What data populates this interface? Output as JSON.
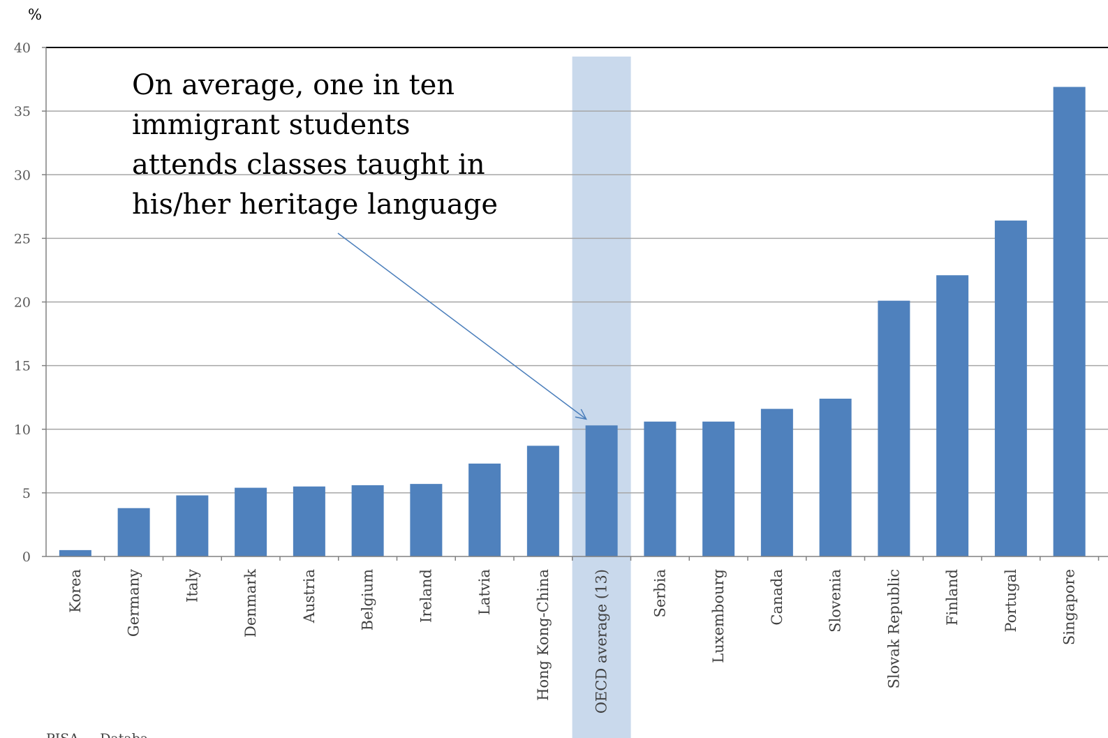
{
  "chart_data": {
    "type": "bar",
    "unit_label": "%",
    "ylim": [
      0,
      40
    ],
    "yticks": [
      0,
      5,
      10,
      15,
      20,
      25,
      30,
      35,
      40
    ],
    "grid": true,
    "categories": [
      "Korea",
      "Germany",
      "Italy",
      "Denmark",
      "Austria",
      "Belgium",
      "Ireland",
      "Latvia",
      "Hong Kong-China",
      "OECD average (13)",
      "Serbia",
      "Luxembourg",
      "Canada",
      "Slovenia",
      "Slovak Republic",
      "Finland",
      "Portugal",
      "Singapore"
    ],
    "values": [
      0.5,
      3.8,
      4.8,
      5.4,
      5.5,
      5.6,
      5.7,
      7.3,
      8.7,
      10.3,
      10.6,
      10.6,
      11.6,
      12.4,
      20.1,
      22.1,
      26.4,
      36.9
    ],
    "highlight_category": "OECD average (13)",
    "annotation": {
      "lines": [
        "On average, one in ten",
        "immigrant students",
        "attends classes taught in",
        "his/her heritage language"
      ],
      "points_to": "OECD average (13)"
    },
    "source_fragment": "PISA ... Databa...",
    "colors": {
      "bar": "#4f81bd",
      "highlight_band": "#c9d9ec",
      "arrow": "#4a7ebb",
      "grid": "#a6a6a6"
    }
  }
}
